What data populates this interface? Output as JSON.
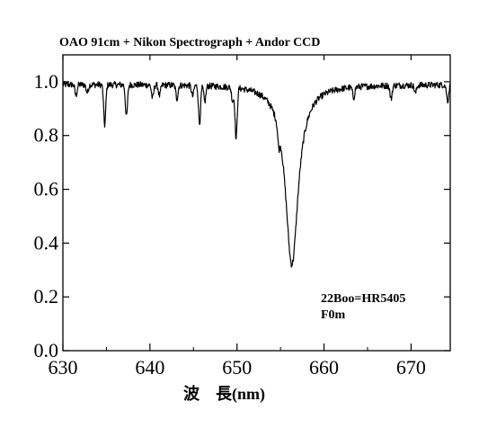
{
  "chart_data": {
    "type": "line",
    "title": "OAO 91cm + Nikon Spectrograph + Andor CCD",
    "xlabel": "波　長(nm)",
    "ylabel": "",
    "xlim": [
      630,
      674.5
    ],
    "ylim": [
      0.0,
      1.1
    ],
    "x_ticks": [
      630,
      640,
      650,
      660,
      670
    ],
    "x_tick_labels": [
      "630",
      "640",
      "650",
      "660",
      "670"
    ],
    "y_ticks": [
      0.0,
      0.2,
      0.4,
      0.6,
      0.8,
      1.0
    ],
    "y_tick_labels": [
      "0.0",
      "0.2",
      "0.4",
      "0.6",
      "0.8",
      "1.0"
    ],
    "grid": false,
    "annotation": [
      "22Boo=HR5405",
      "F0m"
    ],
    "series": [
      {
        "continuum": 0.99,
        "noise": 0.012,
        "broad_line": {
          "center": 656.3,
          "depth": 0.67,
          "width": 0.9
        },
        "lines": [
          {
            "center": 631.5,
            "depth": 0.04
          },
          {
            "center": 632.8,
            "depth": 0.03
          },
          {
            "center": 634.8,
            "depth": 0.15
          },
          {
            "center": 637.3,
            "depth": 0.12
          },
          {
            "center": 640.3,
            "depth": 0.05
          },
          {
            "center": 641.1,
            "depth": 0.04
          },
          {
            "center": 643.1,
            "depth": 0.05
          },
          {
            "center": 644.9,
            "depth": 0.04
          },
          {
            "center": 645.7,
            "depth": 0.14
          },
          {
            "center": 646.3,
            "depth": 0.06
          },
          {
            "center": 649.5,
            "depth": 0.05
          },
          {
            "center": 649.9,
            "depth": 0.19
          },
          {
            "center": 654.8,
            "depth": 0.06
          },
          {
            "center": 663.4,
            "depth": 0.04
          },
          {
            "center": 667.7,
            "depth": 0.05
          },
          {
            "center": 670.5,
            "depth": 0.03
          },
          {
            "center": 674.2,
            "depth": 0.06
          }
        ]
      }
    ]
  }
}
